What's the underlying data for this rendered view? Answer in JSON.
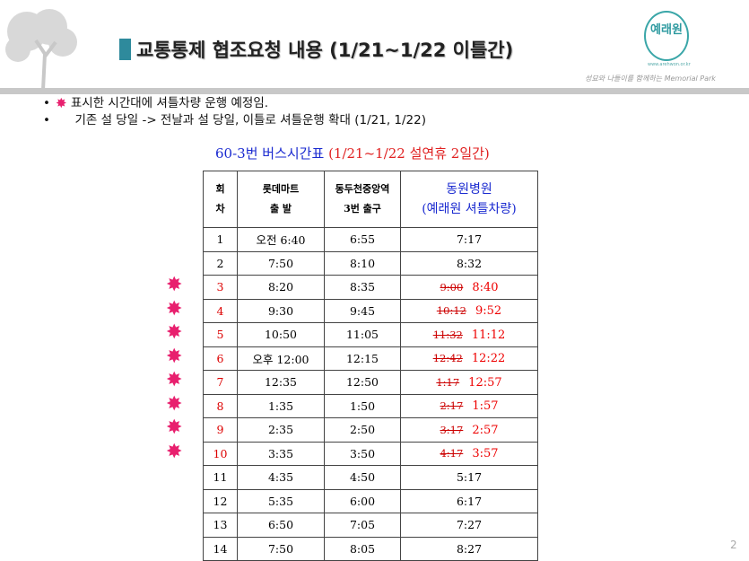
{
  "header": {
    "title": "교통통제 협조요청 내용 (1/21~1/22 이틀간)",
    "logo_text": "예래원",
    "logo_url": "www.arehwon.or.kr",
    "slogan": "성묘와 나들이를 함께하는 Memorial Park"
  },
  "bullets": [
    "표시한 시간대에 셔틀차량 운행 예정임.",
    "기존 설 당일 -> 전날과 설 당일, 이틀로 셔틀운행 확대 (1/21, 1/22)"
  ],
  "caption": {
    "route": "60-3번 버스시간표",
    "period": "(1/21~1/22 설연휴 2일간)"
  },
  "table": {
    "headers": [
      [
        "회",
        "차"
      ],
      [
        "롯데마트",
        "출  발"
      ],
      [
        "동두천중앙역",
        "3번 출구"
      ],
      [
        "동원병원",
        "(예래원 셔틀차량)"
      ]
    ],
    "rows": [
      {
        "no": "1",
        "lotte": "오전 6:40",
        "station": "6:55",
        "old": "",
        "new": "7:17",
        "shuttle": false
      },
      {
        "no": "2",
        "lotte": "7:50",
        "station": "8:10",
        "old": "",
        "new": "8:32",
        "shuttle": false
      },
      {
        "no": "3",
        "lotte": "8:20",
        "station": "8:35",
        "old": "9:00",
        "new": "8:40",
        "shuttle": true
      },
      {
        "no": "4",
        "lotte": "9:30",
        "station": "9:45",
        "old": "10:12",
        "new": "9:52",
        "shuttle": true
      },
      {
        "no": "5",
        "lotte": "10:50",
        "station": "11:05",
        "old": "11:32",
        "new": "11:12",
        "shuttle": true
      },
      {
        "no": "6",
        "lotte": "오후 12:00",
        "station": "12:15",
        "old": "12:42",
        "new": "12:22",
        "shuttle": true
      },
      {
        "no": "7",
        "lotte": "12:35",
        "station": "12:50",
        "old": "1:17",
        "new": "12:57",
        "shuttle": true
      },
      {
        "no": "8",
        "lotte": "1:35",
        "station": "1:50",
        "old": "2:17",
        "new": "1:57",
        "shuttle": true
      },
      {
        "no": "9",
        "lotte": "2:35",
        "station": "2:50",
        "old": "3:17",
        "new": "2:57",
        "shuttle": true
      },
      {
        "no": "10",
        "lotte": "3:35",
        "station": "3:50",
        "old": "4:17",
        "new": "3:57",
        "shuttle": true
      },
      {
        "no": "11",
        "lotte": "4:35",
        "station": "4:50",
        "old": "",
        "new": "5:17",
        "shuttle": false
      },
      {
        "no": "12",
        "lotte": "5:35",
        "station": "6:00",
        "old": "",
        "new": "6:17",
        "shuttle": false
      },
      {
        "no": "13",
        "lotte": "6:50",
        "station": "7:05",
        "old": "",
        "new": "7:27",
        "shuttle": false
      },
      {
        "no": "14",
        "lotte": "7:50",
        "station": "8:05",
        "old": "",
        "new": "8:27",
        "shuttle": false
      }
    ]
  },
  "colors": {
    "accent": "#2e8a9c",
    "star": "#e8206e",
    "red": "#e00000",
    "blue": "#1a2ad0"
  },
  "page_number": "2"
}
